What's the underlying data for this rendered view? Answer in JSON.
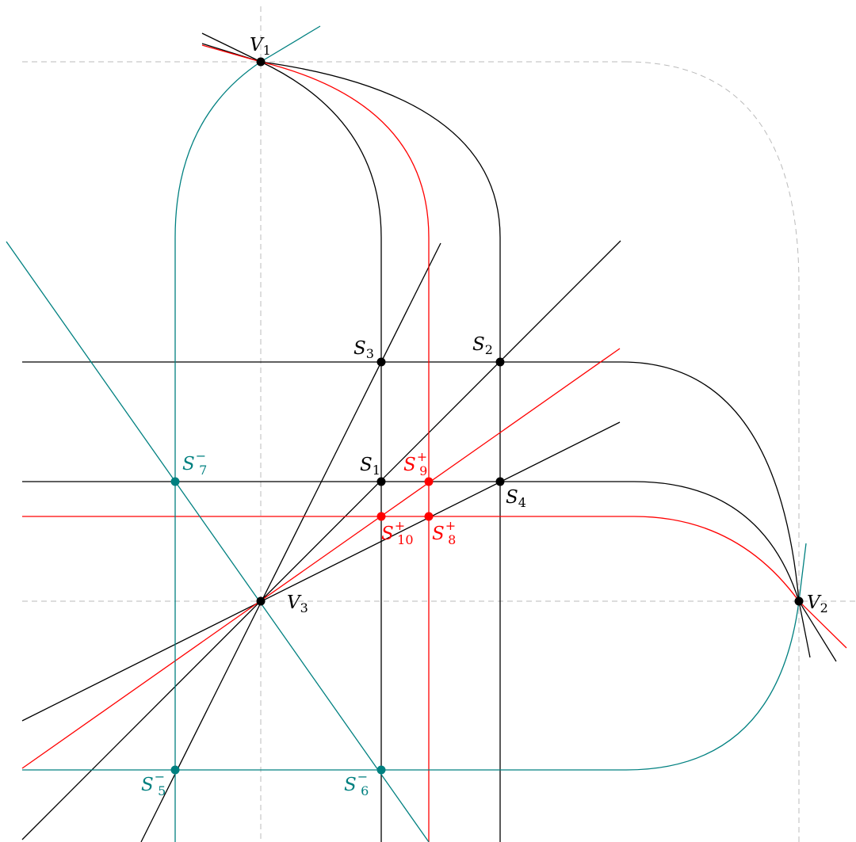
{
  "colors": {
    "black": "#000000",
    "red": "#ff0000",
    "teal": "#008080",
    "guide": "#bbbbbb"
  },
  "labels": {
    "v1": {
      "base": "V",
      "sub": "1",
      "sup": ""
    },
    "v2": {
      "base": "V",
      "sub": "2",
      "sup": ""
    },
    "v3": {
      "base": "V",
      "sub": "3",
      "sup": ""
    },
    "s1": {
      "base": "S",
      "sub": "1",
      "sup": ""
    },
    "s2": {
      "base": "S",
      "sub": "2",
      "sup": ""
    },
    "s3": {
      "base": "S",
      "sub": "3",
      "sup": ""
    },
    "s4": {
      "base": "S",
      "sub": "4",
      "sup": ""
    },
    "s5": {
      "base": "S",
      "sub": "5",
      "sup": "−"
    },
    "s6": {
      "base": "S",
      "sub": "6",
      "sup": "−"
    },
    "s7": {
      "base": "S",
      "sub": "7",
      "sup": "−"
    },
    "s8": {
      "base": "S",
      "sub": "8",
      "sup": "+"
    },
    "s9": {
      "base": "S",
      "sub": "9",
      "sup": "+"
    },
    "s10": {
      "base": "S",
      "sub": "10",
      "sup": "+"
    }
  }
}
